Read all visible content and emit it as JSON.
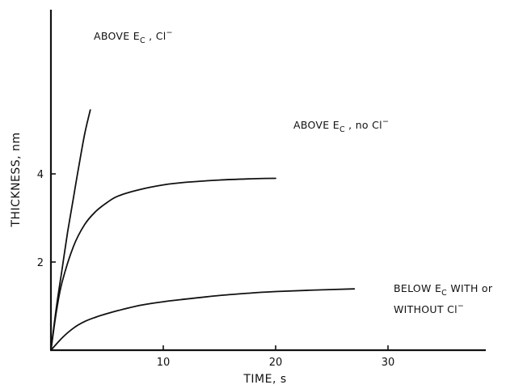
{
  "chart_data": {
    "type": "line",
    "xlabel": "TIME, s",
    "ylabel": "THICKNESS, nm",
    "xlim": [
      0,
      36
    ],
    "ylim": [
      0,
      5.8
    ],
    "xticks": [
      10,
      20,
      30
    ],
    "yticks": [
      2,
      4
    ],
    "grid": false,
    "series": [
      {
        "name": "ABOVE Ec , Cl⁻",
        "x": [
          0,
          0.5,
          1,
          1.5,
          2,
          2.5,
          3,
          3.5
        ],
        "y": [
          0,
          1.0,
          1.85,
          2.7,
          3.45,
          4.2,
          4.9,
          5.45
        ]
      },
      {
        "name": "ABOVE Ec , no Cl⁻",
        "x": [
          0,
          0.5,
          1,
          2,
          3,
          4,
          5,
          6,
          8,
          10,
          12,
          15,
          18,
          20
        ],
        "y": [
          0,
          0.9,
          1.55,
          2.35,
          2.85,
          3.15,
          3.35,
          3.5,
          3.65,
          3.75,
          3.81,
          3.86,
          3.89,
          3.9
        ]
      },
      {
        "name": "BELOW Ec WITH or WITHOUT Cl⁻",
        "x": [
          0,
          1,
          2,
          3,
          4,
          5,
          6,
          8,
          10,
          12,
          15,
          18,
          20,
          23,
          27
        ],
        "y": [
          0,
          0.28,
          0.5,
          0.65,
          0.75,
          0.83,
          0.9,
          1.02,
          1.1,
          1.16,
          1.24,
          1.3,
          1.33,
          1.36,
          1.39
        ]
      }
    ],
    "annotations": [
      {
        "main": "ABOVE E",
        "sub": "C",
        "tail": " , Cl",
        "sup": "−"
      },
      {
        "main": "ABOVE E",
        "sub": "C",
        "tail": " , no Cl",
        "sup": "−"
      },
      {
        "main": "BELOW E",
        "sub": "C",
        "tail": " WITH or"
      },
      {
        "main": "WITHOUT Cl",
        "sup": "−"
      }
    ]
  }
}
